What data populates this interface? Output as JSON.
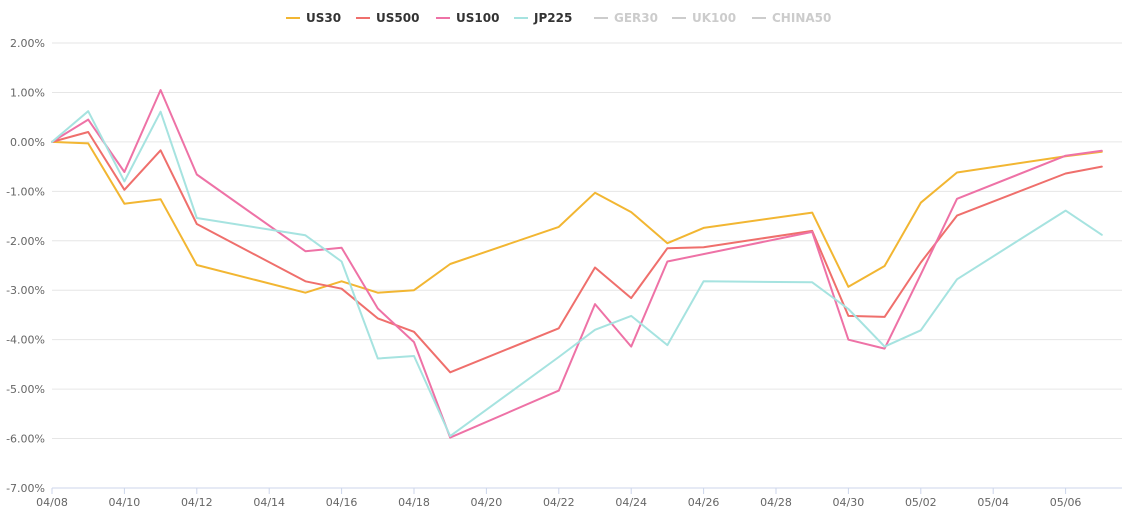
{
  "chart_data": {
    "type": "line",
    "title": "",
    "xlabel": "",
    "ylabel": "",
    "x_ticks": [
      "04/08",
      "04/10",
      "04/12",
      "04/14",
      "04/16",
      "04/18",
      "04/20",
      "04/22",
      "04/24",
      "04/26",
      "04/28",
      "04/30",
      "05/02",
      "05/04",
      "05/06"
    ],
    "y_ticks": [
      "2.00%",
      "1.00%",
      "0.00%",
      "-1.00%",
      "-2.00%",
      "-3.00%",
      "-4.00%",
      "-5.00%",
      "-6.00%",
      "-7.00%"
    ],
    "ylim": [
      -7,
      2
    ],
    "grid": true,
    "legend_position": "top-center",
    "series": [
      {
        "name": "US30",
        "color": "#f2b632",
        "visible": true,
        "points": [
          [
            "04/08",
            0.0
          ],
          [
            "04/09",
            -0.03
          ],
          [
            "04/10",
            -1.25
          ],
          [
            "04/11",
            -1.16
          ],
          [
            "04/12",
            -2.49
          ],
          [
            "04/15",
            -3.05
          ],
          [
            "04/16",
            -2.82
          ],
          [
            "04/17",
            -3.05
          ],
          [
            "04/18",
            -3.0
          ],
          [
            "04/19",
            -2.47
          ],
          [
            "04/22",
            -1.72
          ],
          [
            "04/23",
            -1.03
          ],
          [
            "04/24",
            -1.42
          ],
          [
            "04/25",
            -2.05
          ],
          [
            "04/26",
            -1.74
          ],
          [
            "04/29",
            -1.43
          ],
          [
            "04/30",
            -2.93
          ],
          [
            "05/01",
            -2.51
          ],
          [
            "05/02",
            -1.23
          ],
          [
            "05/03",
            -0.62
          ],
          [
            "05/06",
            -0.29
          ],
          [
            "05/07",
            -0.2
          ]
        ]
      },
      {
        "name": "US500",
        "color": "#ef6f6c",
        "visible": true,
        "points": [
          [
            "04/08",
            0.0
          ],
          [
            "04/09",
            0.2
          ],
          [
            "04/10",
            -0.97
          ],
          [
            "04/11",
            -0.17
          ],
          [
            "04/12",
            -1.66
          ],
          [
            "04/15",
            -2.82
          ],
          [
            "04/16",
            -2.97
          ],
          [
            "04/17",
            -3.57
          ],
          [
            "04/18",
            -3.84
          ],
          [
            "04/19",
            -4.66
          ],
          [
            "04/22",
            -3.77
          ],
          [
            "04/23",
            -2.54
          ],
          [
            "04/24",
            -3.16
          ],
          [
            "04/25",
            -2.15
          ],
          [
            "04/26",
            -2.13
          ],
          [
            "04/29",
            -1.8
          ],
          [
            "04/30",
            -3.52
          ],
          [
            "05/01",
            -3.54
          ],
          [
            "05/02",
            -2.44
          ],
          [
            "05/03",
            -1.49
          ],
          [
            "05/06",
            -0.64
          ],
          [
            "05/07",
            -0.5
          ]
        ]
      },
      {
        "name": "US100",
        "color": "#ee72a6",
        "visible": true,
        "points": [
          [
            "04/08",
            0.0
          ],
          [
            "04/09",
            0.45
          ],
          [
            "04/10",
            -0.61
          ],
          [
            "04/11",
            1.05
          ],
          [
            "04/12",
            -0.66
          ],
          [
            "04/15",
            -2.21
          ],
          [
            "04/16",
            -2.14
          ],
          [
            "04/17",
            -3.37
          ],
          [
            "04/18",
            -4.05
          ],
          [
            "04/19",
            -5.98
          ],
          [
            "04/22",
            -5.03
          ],
          [
            "04/23",
            -3.28
          ],
          [
            "04/24",
            -4.14
          ],
          [
            "04/25",
            -2.42
          ],
          [
            "04/29",
            -1.82
          ],
          [
            "04/30",
            -4.0
          ],
          [
            "05/01",
            -4.18
          ],
          [
            "05/02",
            -2.68
          ],
          [
            "05/03",
            -1.15
          ],
          [
            "05/06",
            -0.28
          ],
          [
            "05/07",
            -0.18
          ]
        ]
      },
      {
        "name": "JP225",
        "color": "#a6e3e0",
        "visible": true,
        "points": [
          [
            "04/08",
            0.0
          ],
          [
            "04/09",
            0.62
          ],
          [
            "04/10",
            -0.8
          ],
          [
            "04/11",
            0.61
          ],
          [
            "04/12",
            -1.54
          ],
          [
            "04/15",
            -1.89
          ],
          [
            "04/16",
            -2.42
          ],
          [
            "04/17",
            -4.38
          ],
          [
            "04/18",
            -4.33
          ],
          [
            "04/19",
            -5.95
          ],
          [
            "04/22",
            -4.35
          ],
          [
            "04/23",
            -3.8
          ],
          [
            "04/24",
            -3.52
          ],
          [
            "04/25",
            -4.11
          ],
          [
            "04/26",
            -2.82
          ],
          [
            "04/29",
            -2.84
          ],
          [
            "04/30",
            -3.38
          ],
          [
            "05/01",
            -4.14
          ],
          [
            "05/02",
            -3.81
          ],
          [
            "05/03",
            -2.78
          ],
          [
            "05/06",
            -1.39
          ],
          [
            "05/07",
            -1.88
          ]
        ]
      },
      {
        "name": "GER30",
        "color": "#cccccc",
        "visible": false,
        "points": []
      },
      {
        "name": "UK100",
        "color": "#cccccc",
        "visible": false,
        "points": []
      },
      {
        "name": "CHINA50",
        "color": "#cccccc",
        "visible": false,
        "points": []
      }
    ]
  }
}
